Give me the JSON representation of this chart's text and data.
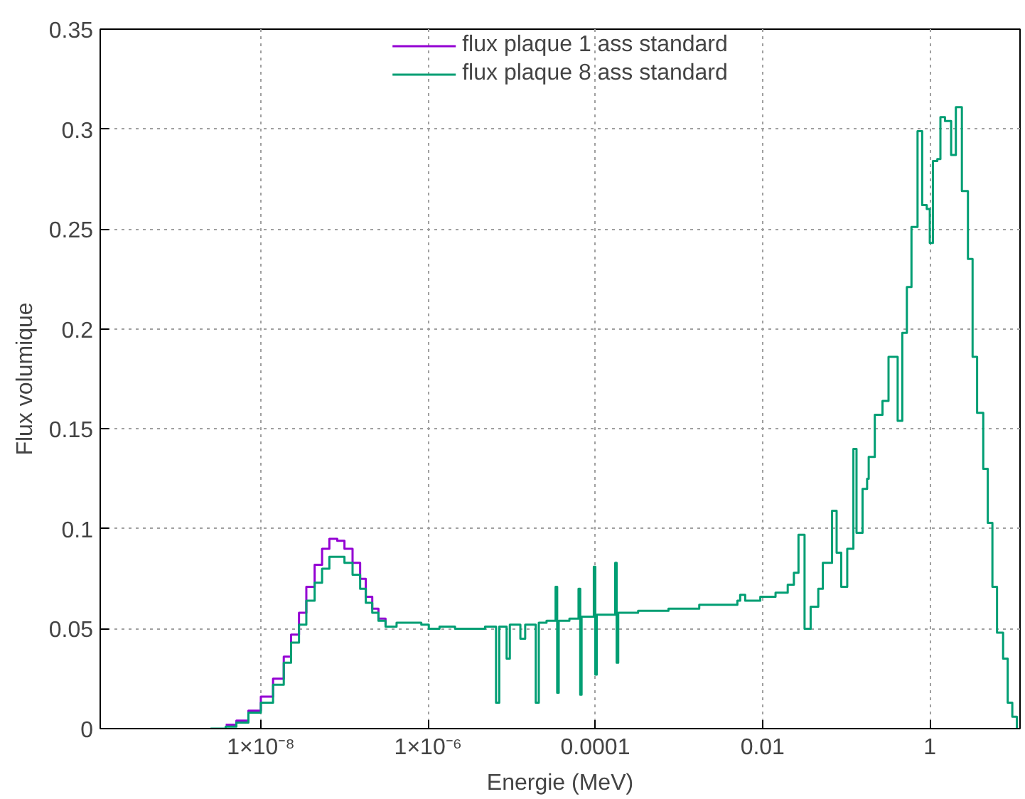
{
  "chart_data": {
    "type": "step",
    "xlabel": "Energie (MeV)",
    "ylabel": "Flux volumique",
    "log": "x",
    "grid": true,
    "legend": "top",
    "line_style": "solid",
    "marker": "none",
    "xlim": [
      1.2e-10,
      12
    ],
    "xticks": [
      {
        "value": 1e-08,
        "label": "1×10⁻⁸"
      },
      {
        "value": 1e-06,
        "label": "1×10⁻⁶"
      },
      0.0001,
      0.01,
      1
    ],
    "ylim": [
      0,
      0.35
    ],
    "yticks": [
      0,
      0.05,
      0.1,
      0.15,
      0.2,
      0.25,
      0.3,
      0.35
    ],
    "x": [
      2.5e-09,
      3.8e-09,
      5.1e-09,
      7.1e-09,
      1e-08,
      1.4e-08,
      1.88e-08,
      2.3e-08,
      2.86e-08,
      3.5e-08,
      4.4e-08,
      5.4e-08,
      6.6e-08,
      8.2e-08,
      1e-07,
      1.25e-07,
      1.54e-07,
      1.8e-07,
      2.15e-07,
      2.55e-07,
      3.1e-07,
      4.2e-07,
      5.9e-07,
      8.3e-07,
      1.02e-06,
      1.37e-06,
      2.1e-06,
      3.2e-06,
      4.8e-06,
      6.5e-06,
      7.1e-06,
      8.7e-06,
      9.5e-06,
      1.27e-05,
      1.45e-05,
      1.94e-05,
      2.11e-05,
      2.61e-05,
      3.35e-05,
      3.5e-05,
      3.65e-05,
      4.9e-05,
      6.3e-05,
      6.6e-05,
      6.85e-05,
      9.6e-05,
      0.0001,
      0.000104,
      0.00014,
      0.000173,
      0.00018,
      0.000188,
      0.000325,
      0.00075,
      0.00175,
      0.005,
      0.0054,
      0.0062,
      0.0094,
      0.0143,
      0.02,
      0.0237,
      0.0269,
      0.0318,
      0.0376,
      0.0464,
      0.0526,
      0.0678,
      0.0769,
      0.0873,
      0.103,
      0.122,
      0.133,
      0.157,
      0.178,
      0.186,
      0.22,
      0.272,
      0.321,
      0.413,
      0.469,
      0.532,
      0.604,
      0.714,
      0.811,
      0.92,
      1.0,
      1.09,
      1.23,
      1.34,
      1.52,
      1.8,
      2.05,
      2.42,
      2.86,
      3.25,
      3.68,
      4.36,
      4.94,
      5.61,
      6.37,
      7.53,
      8.55,
      9.7,
      11.0
    ],
    "series": [
      {
        "name": "flux plaque 1 ass standard",
        "color": "#9400d3",
        "values": [
          null,
          0.002,
          0.004,
          0.009,
          0.016,
          0.025,
          0.036,
          0.047,
          0.058,
          0.071,
          0.082,
          0.09,
          0.095,
          0.094,
          0.09,
          0.083,
          0.075,
          0.066,
          0.06,
          0.055,
          0.052,
          null,
          null,
          null,
          null,
          null,
          null,
          null,
          null,
          null,
          null,
          null,
          null,
          null,
          null,
          null,
          null,
          null,
          null,
          null,
          null,
          null,
          null,
          null,
          null,
          null,
          null,
          null,
          null,
          null,
          null,
          null,
          null,
          null,
          null,
          null,
          null,
          null,
          null,
          null,
          null,
          null,
          null,
          null,
          null,
          null,
          null,
          null,
          null,
          null,
          null,
          null,
          null,
          null,
          null,
          null,
          null,
          null,
          null,
          null,
          null,
          null,
          null,
          null,
          null,
          null,
          null,
          null,
          null,
          null,
          null,
          null,
          null,
          null,
          null,
          null,
          null,
          null,
          null,
          null,
          null,
          null,
          null,
          null,
          null
        ]
      },
      {
        "name": "flux plaque 8 ass standard",
        "color": "#009e73",
        "values": [
          0,
          0.001,
          0.003,
          0.008,
          0.013,
          0.022,
          0.033,
          0.043,
          0.052,
          0.064,
          0.073,
          0.08,
          0.086,
          0.086,
          0.083,
          0.077,
          0.07,
          0.063,
          0.058,
          0.054,
          0.051,
          0.053,
          0.053,
          0.052,
          0.05,
          0.051,
          0.05,
          0.05,
          0.051,
          0.013,
          0.051,
          0.035,
          0.052,
          0.045,
          0.052,
          0.013,
          0.053,
          0.054,
          0.071,
          0.018,
          0.054,
          0.055,
          0.07,
          0.017,
          0.056,
          0.081,
          0.027,
          0.057,
          0.057,
          0.083,
          0.033,
          0.058,
          0.059,
          0.06,
          0.062,
          0.064,
          0.067,
          0.064,
          0.066,
          0.068,
          0.072,
          0.078,
          0.097,
          0.05,
          0.061,
          0.07,
          0.083,
          0.109,
          0.088,
          0.071,
          0.09,
          0.14,
          0.098,
          0.12,
          0.125,
          0.136,
          0.157,
          0.164,
          0.186,
          0.154,
          0.198,
          0.221,
          0.251,
          0.299,
          0.262,
          0.26,
          0.243,
          0.284,
          0.285,
          0.306,
          0.304,
          0.287,
          0.311,
          0.269,
          0.235,
          0.186,
          0.158,
          0.13,
          0.103,
          0.071,
          0.048,
          0.035,
          0.013,
          0.006,
          0
        ]
      }
    ]
  }
}
